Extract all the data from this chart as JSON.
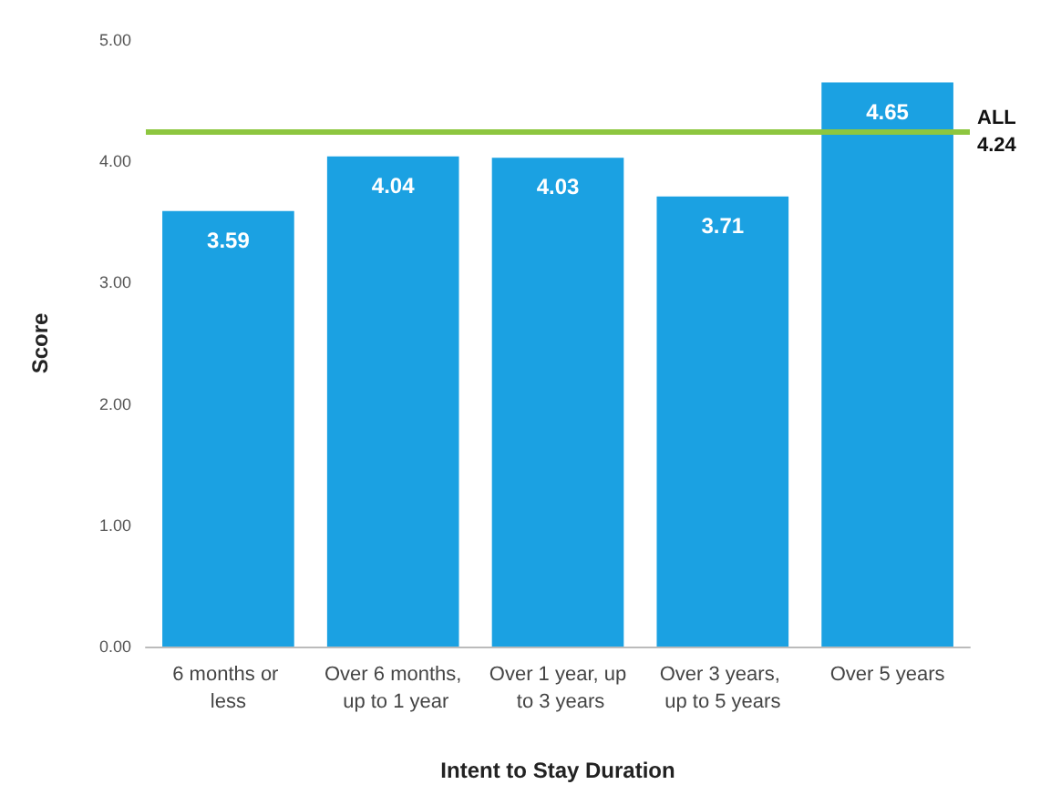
{
  "chart_data": {
    "type": "bar",
    "xlabel": "Intent to Stay Duration",
    "ylabel": "Score",
    "categories": [
      "6 months or less",
      "Over 6 months, up to 1 year",
      "Over 1 year, up to 3 years",
      "Over 3 years, up to 5 years",
      "Over 5 years"
    ],
    "values": [
      3.59,
      4.04,
      4.03,
      3.71,
      4.65
    ],
    "color": "#1ba1e2",
    "data_labels": true,
    "ylim": [
      0,
      5
    ],
    "yticks": [
      {
        "value": 0,
        "label": "0.00"
      },
      {
        "value": 1,
        "label": "1.00"
      },
      {
        "value": 2,
        "label": "2.00"
      },
      {
        "value": 3,
        "label": "3.00"
      },
      {
        "value": 4,
        "label": "4.00"
      },
      {
        "value": 5,
        "label": "5.00"
      }
    ],
    "ref_lines": [
      {
        "axis": "y",
        "value": 4.24,
        "label": "ALL\n4.24",
        "color": "#8dc63f"
      }
    ],
    "grid": false
  }
}
